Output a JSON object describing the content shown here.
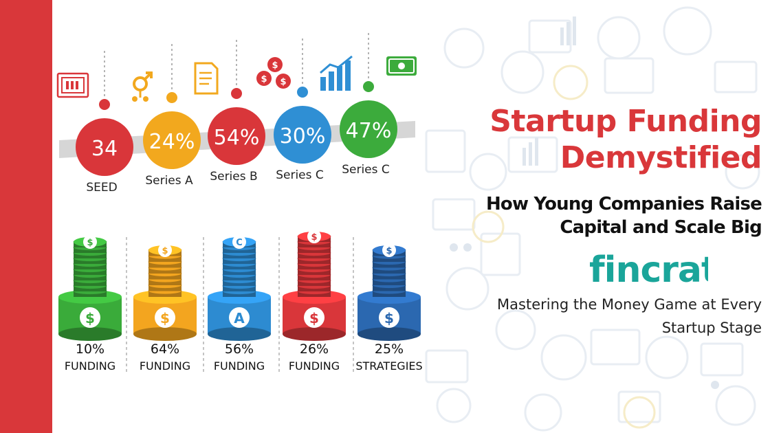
{
  "header": {
    "title_line1": "Startup Funding",
    "title_line2": "Demystified",
    "subtitle_line1": "How Young Companies Raise",
    "subtitle_line2": "Capital and Scale Big",
    "brand": "fincrat",
    "tagline_line1": "Mastering the Money Game at Every",
    "tagline_line2": "Startup Stage"
  },
  "infographic": {
    "stages": [
      {
        "value": "34",
        "label": "SEED",
        "color": "#d9363a"
      },
      {
        "value": "24%",
        "label": "Series A",
        "color": "#f2a81e"
      },
      {
        "value": "54%",
        "label": "Series B",
        "color": "#d9363a"
      },
      {
        "value": "30%",
        "label": "Series C",
        "color": "#2f8fd4"
      },
      {
        "value": "47%",
        "label": "Series C",
        "color": "#3cab3c"
      }
    ],
    "stacks": [
      {
        "percent": "10%",
        "label": "FUNDING",
        "coin_symbol": "$",
        "base_symbol": "$",
        "color": "#3aab3a"
      },
      {
        "percent": "64%",
        "label": "FUNDING",
        "coin_symbol": "$",
        "base_symbol": "$",
        "color": "#f3a51f"
      },
      {
        "percent": "56%",
        "label": "FUNDING",
        "coin_symbol": "C",
        "base_symbol": "A",
        "color": "#2d8bd1"
      },
      {
        "percent": "26%",
        "label": "FUNDING",
        "coin_symbol": "$",
        "base_symbol": "$",
        "color": "#d9363a"
      },
      {
        "percent": "25%",
        "label": "STRATEGIES",
        "coin_symbol": "$",
        "base_symbol": "$",
        "color": "#2b68b0"
      }
    ]
  },
  "colors": {
    "accent": "#d9373a",
    "brand_teal": "#1aa59a",
    "brand_dark": "#1a2a6c"
  }
}
